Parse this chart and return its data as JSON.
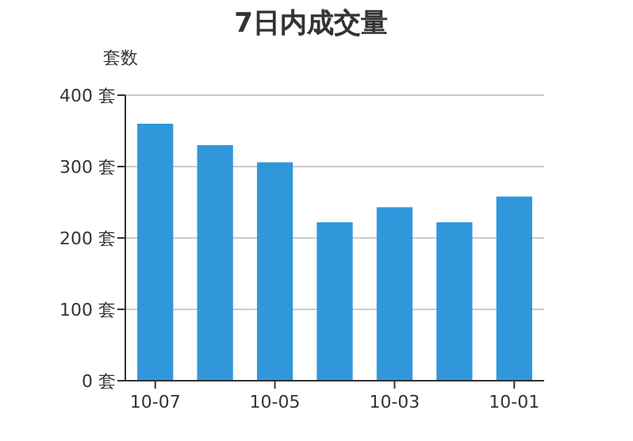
{
  "chart_data": {
    "type": "bar",
    "title": "7日内成交量",
    "ylabel": "套数",
    "categories": [
      "10-07",
      null,
      "10-05",
      null,
      "10-03",
      null,
      "10-01"
    ],
    "values": [
      360,
      330,
      306,
      222,
      243,
      222,
      258
    ],
    "color": "#3097db",
    "ylim": [
      0,
      400
    ],
    "yticks": [
      {
        "value": 0,
        "label": "0 套"
      },
      {
        "value": 100,
        "label": "100 套"
      },
      {
        "value": 200,
        "label": "200 套"
      },
      {
        "value": 300,
        "label": "300 套"
      },
      {
        "value": 400,
        "label": "400 套"
      }
    ],
    "grid": "y"
  }
}
